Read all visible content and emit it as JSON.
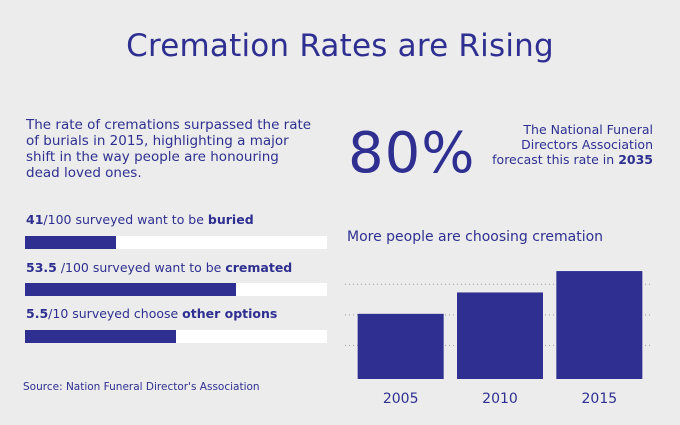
{
  "title": "Cremation Rates are Rising",
  "intro": "The rate of cremations surpassed the rate of burials in 2015, highlighting a major shift in the way people are honouring dead loved ones.",
  "stats": [
    {
      "value": "41",
      "text": "/100 surveyed want to be ",
      "emphasis": "buried",
      "fraction": 0.3
    },
    {
      "value": "53.5",
      "text": " /100 surveyed want to be ",
      "emphasis": "cremated",
      "fraction": 0.7
    },
    {
      "value": "5.5",
      "text": "/10 surveyed choose ",
      "emphasis": "other options",
      "fraction": 0.5
    }
  ],
  "source": "Source: Nation Funeral Director's Association",
  "highlight": {
    "percent": "80%",
    "forecast_text": "The National Funeral Directors Association forecast this rate in",
    "forecast_year": "2035"
  },
  "chart_title": {
    "text": "More people are choosing ",
    "emphasis": "cremation"
  },
  "colors": {
    "accent": "#2e2f91",
    "background": "#ececec",
    "track": "#ffffff"
  },
  "chart_data": {
    "type": "bar",
    "categories": [
      "2005",
      "2010",
      "2015"
    ],
    "values": [
      64,
      85,
      106
    ],
    "ylim": [
      0,
      110
    ],
    "grid": true,
    "title": "More people are choosing cremation",
    "xlabel": "",
    "ylabel": ""
  }
}
